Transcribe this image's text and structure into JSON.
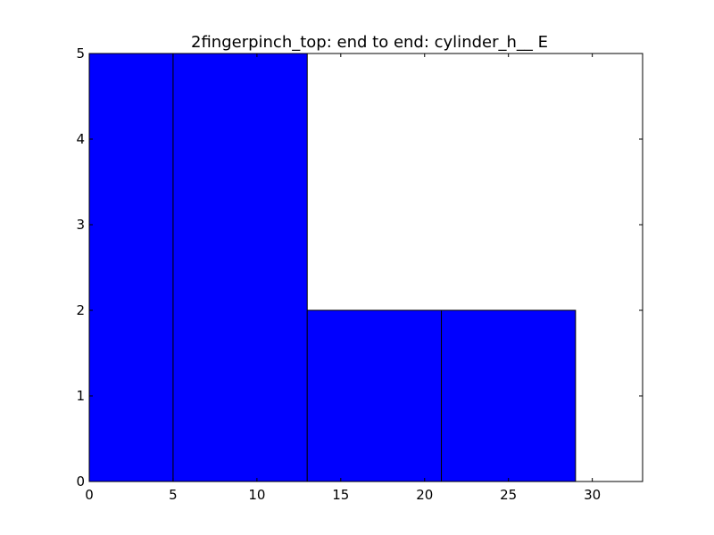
{
  "chart_data": {
    "type": "bar",
    "title": "2fingerpinch_top: end to end: cylinder_h__ E",
    "xlabel": "",
    "ylabel": "",
    "xlim": [
      0,
      33
    ],
    "ylim": [
      0,
      5
    ],
    "x_ticks": [
      0,
      5,
      10,
      15,
      20,
      25,
      30
    ],
    "y_ticks": [
      0,
      1,
      2,
      3,
      4,
      5
    ],
    "bins": [
      {
        "start": 0,
        "end": 5,
        "value": 5
      },
      {
        "start": 5,
        "end": 13,
        "value": 5
      },
      {
        "start": 13,
        "end": 21,
        "value": 2
      },
      {
        "start": 21,
        "end": 29,
        "value": 2
      }
    ],
    "grid": false,
    "bar_color": "#0000ff",
    "edge_color": "#000000"
  }
}
